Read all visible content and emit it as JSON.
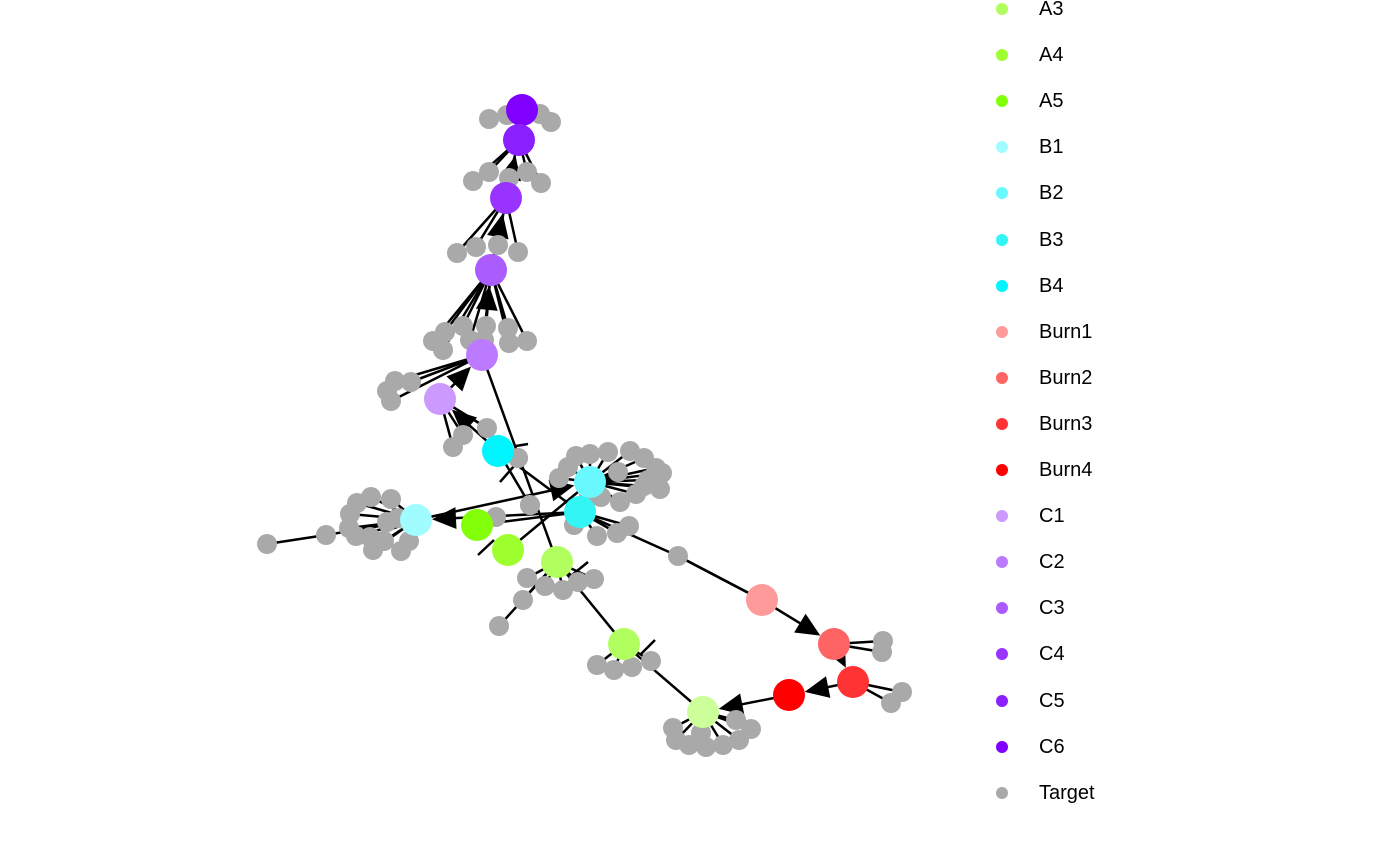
{
  "colors": {
    "edge": "#000000",
    "target": "#A9A9A9"
  },
  "legend": [
    {
      "label": "A3",
      "color": "#B0FF5E"
    },
    {
      "label": "A4",
      "color": "#9EFF2E"
    },
    {
      "label": "A5",
      "color": "#84FF0A"
    },
    {
      "label": "B1",
      "color": "#A0FCFF"
    },
    {
      "label": "B2",
      "color": "#6AF8FF"
    },
    {
      "label": "B3",
      "color": "#33F5F5"
    },
    {
      "label": "B4",
      "color": "#00F5FF"
    },
    {
      "label": "Burn1",
      "color": "#FF9A9A"
    },
    {
      "label": "Burn2",
      "color": "#FF6464"
    },
    {
      "label": "Burn3",
      "color": "#FF3333"
    },
    {
      "label": "Burn4",
      "color": "#FF0000"
    },
    {
      "label": "C1",
      "color": "#CC99FF"
    },
    {
      "label": "C2",
      "color": "#BB7AFF"
    },
    {
      "label": "C3",
      "color": "#AA5CFF"
    },
    {
      "label": "C4",
      "color": "#9933FF"
    },
    {
      "label": "C5",
      "color": "#8A1FFF"
    },
    {
      "label": "C6",
      "color": "#7F00FF"
    },
    {
      "label": "Target",
      "color": "#A9A9A9"
    }
  ]
}
